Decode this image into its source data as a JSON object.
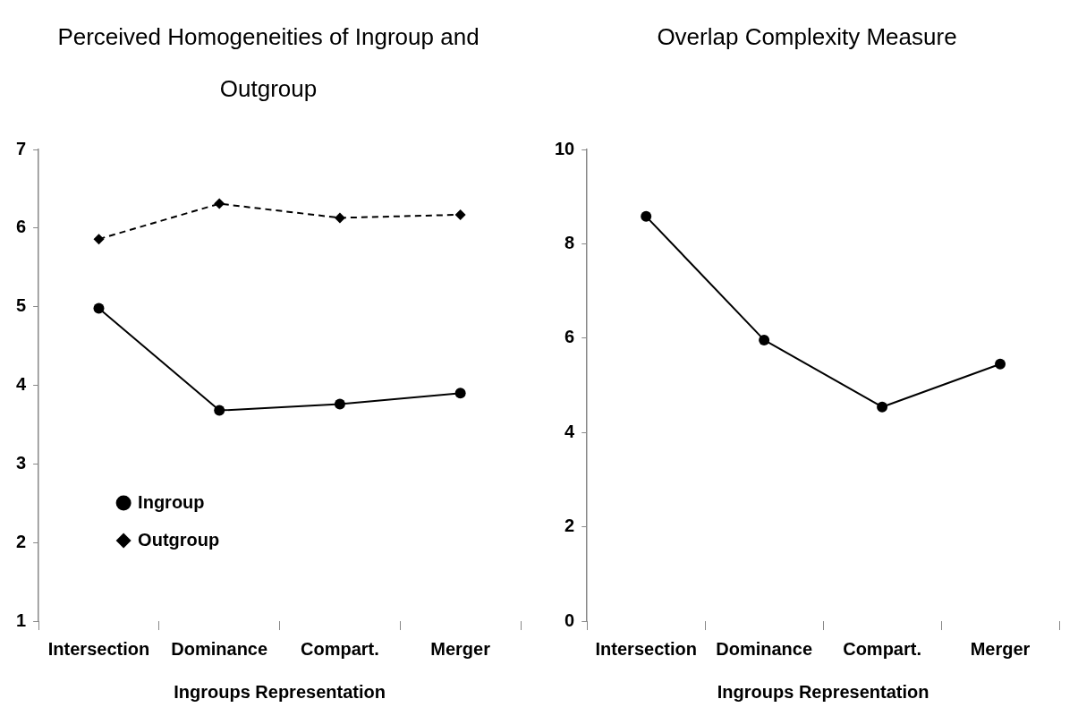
{
  "chart_data": [
    {
      "type": "line",
      "title": "Perceived Homogeneities of Ingroup and Outgroup",
      "xlabel": "Ingroups Representation",
      "categories": [
        "Intersection",
        "Dominance",
        "Compart.",
        "Merger"
      ],
      "series": [
        {
          "name": "Ingroup",
          "color": "#000000",
          "marker": "circle",
          "line_style": "solid",
          "values": [
            4.98,
            3.68,
            3.76,
            3.9
          ]
        },
        {
          "name": "Outgroup",
          "color": "#000000",
          "marker": "diamond",
          "line_style": "dashed",
          "values": [
            5.86,
            6.31,
            6.13,
            6.17
          ]
        }
      ],
      "ylim": [
        1,
        7
      ],
      "yticks": [
        1,
        2,
        3,
        4,
        5,
        6,
        7
      ],
      "grid": false,
      "legend": "bottom left"
    },
    {
      "type": "line",
      "title": "Overlap Complexity Measure",
      "xlabel": "Ingroups Representation",
      "categories": [
        "Intersection",
        "Dominance",
        "Compart.",
        "Merger"
      ],
      "series": [
        {
          "color": "#000000",
          "marker": "circle",
          "line_style": "solid",
          "values": [
            8.58,
            5.96,
            4.54,
            5.45
          ]
        }
      ],
      "ylim": [
        0,
        10
      ],
      "yticks": [
        0,
        2,
        4,
        6,
        8,
        10
      ],
      "grid": false,
      "legend": false
    }
  ]
}
